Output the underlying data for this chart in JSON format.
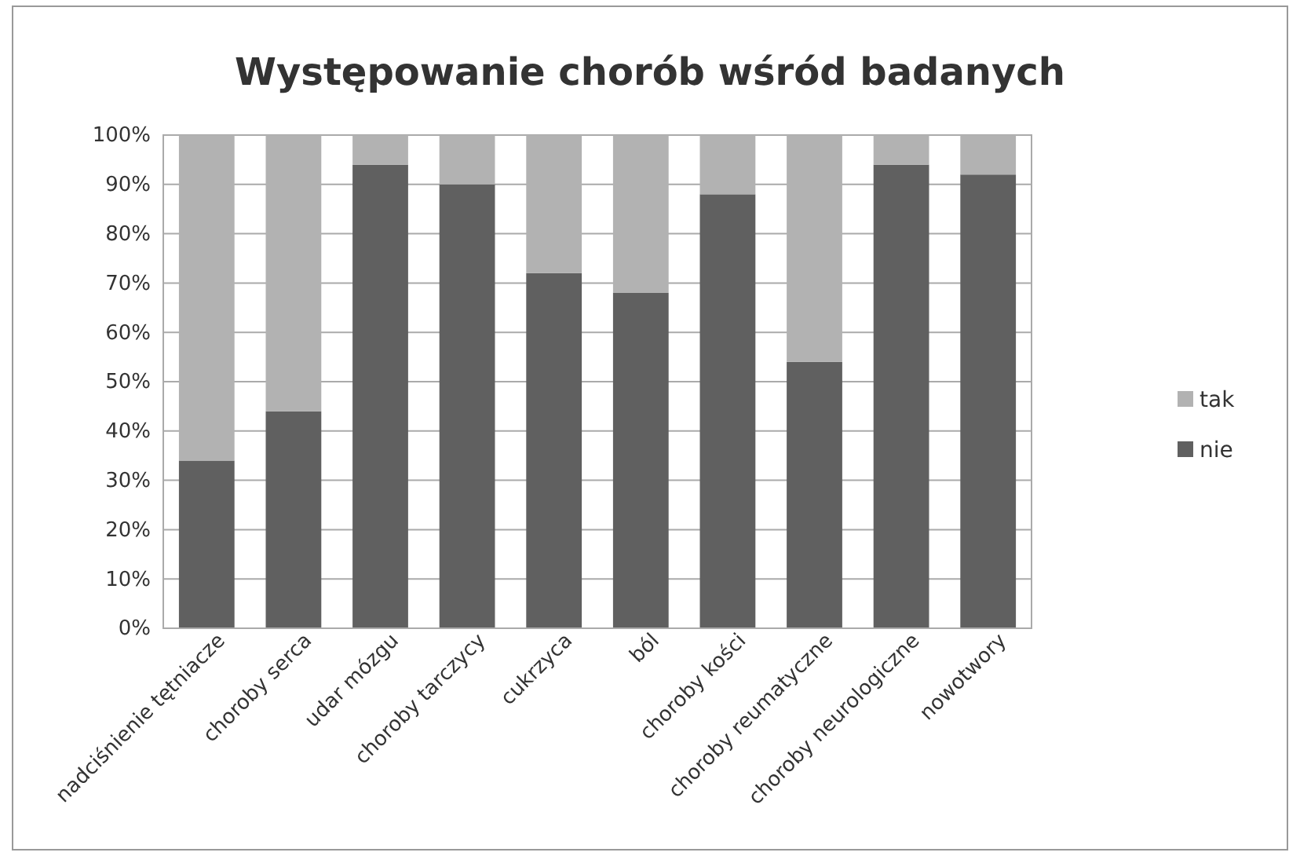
{
  "chart_data": {
    "type": "bar",
    "title": "Występowanie chorób wśród badanych",
    "stacked": true,
    "legend": "right",
    "grid": "y",
    "categories": [
      "nadciśnienie tętniacze",
      "choroby serca",
      "udar mózgu",
      "choroby tarczycy",
      "cukrzyca",
      "ból",
      "choroby kości",
      "choroby reumatyczne",
      "choroby neurologiczne",
      "nowotwory"
    ],
    "series": [
      {
        "name": "nie",
        "color": "#606060",
        "values": [
          34,
          44,
          94,
          90,
          72,
          68,
          88,
          54,
          94,
          92
        ]
      },
      {
        "name": "tak",
        "color": "#b2b2b2",
        "values": [
          66,
          56,
          6,
          10,
          28,
          32,
          12,
          46,
          6,
          8
        ]
      }
    ],
    "ylim": [
      0,
      100
    ],
    "yticks": [
      {
        "value": 0,
        "label": "0%"
      },
      {
        "value": 10,
        "label": "10%"
      },
      {
        "value": 20,
        "label": "20%"
      },
      {
        "value": 30,
        "label": "30%"
      },
      {
        "value": 40,
        "label": "40%"
      },
      {
        "value": 50,
        "label": "50%"
      },
      {
        "value": 60,
        "label": "60%"
      },
      {
        "value": 70,
        "label": "70%"
      },
      {
        "value": 80,
        "label": "80%"
      },
      {
        "value": 90,
        "label": "90%"
      },
      {
        "value": 100,
        "label": "100%"
      }
    ]
  }
}
